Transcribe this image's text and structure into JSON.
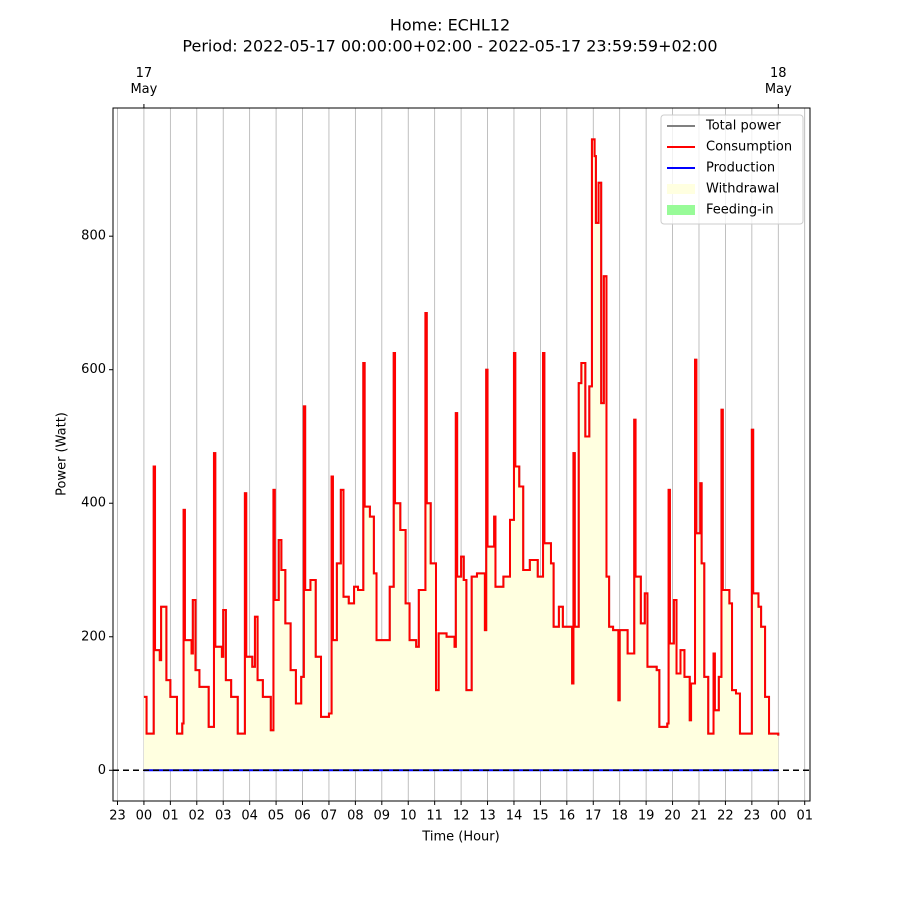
{
  "chart_data": {
    "type": "step",
    "title": "Home: ECHL12",
    "subtitle": "Period: 2022-05-17 00:00:00+02:00 - 2022-05-17 23:59:59+02:00",
    "x_label": "Time (Hour)",
    "y_label": "Power (Watt)",
    "xlim": [
      -1.17,
      25.2
    ],
    "ylim": [
      -46,
      992
    ],
    "xticks": [
      {
        "value": -1,
        "label": "23"
      },
      {
        "value": 0,
        "label": "00"
      },
      {
        "value": 1,
        "label": "01"
      },
      {
        "value": 2,
        "label": "02"
      },
      {
        "value": 3,
        "label": "03"
      },
      {
        "value": 4,
        "label": "04"
      },
      {
        "value": 5,
        "label": "05"
      },
      {
        "value": 6,
        "label": "06"
      },
      {
        "value": 7,
        "label": "07"
      },
      {
        "value": 8,
        "label": "08"
      },
      {
        "value": 9,
        "label": "09"
      },
      {
        "value": 10,
        "label": "10"
      },
      {
        "value": 11,
        "label": "11"
      },
      {
        "value": 12,
        "label": "12"
      },
      {
        "value": 13,
        "label": "13"
      },
      {
        "value": 14,
        "label": "14"
      },
      {
        "value": 15,
        "label": "15"
      },
      {
        "value": 16,
        "label": "16"
      },
      {
        "value": 17,
        "label": "17"
      },
      {
        "value": 18,
        "label": "18"
      },
      {
        "value": 19,
        "label": "19"
      },
      {
        "value": 20,
        "label": "20"
      },
      {
        "value": 21,
        "label": "21"
      },
      {
        "value": 22,
        "label": "22"
      },
      {
        "value": 23,
        "label": "23"
      },
      {
        "value": 24,
        "label": "00"
      },
      {
        "value": 25,
        "label": "01"
      }
    ],
    "top_xticks": [
      {
        "value": 0,
        "label": "17\nMay"
      },
      {
        "value": 24,
        "label": "18\nMay"
      }
    ],
    "yticks": [
      0,
      200,
      400,
      600,
      800
    ],
    "grid": "x",
    "legend": "upper right",
    "hline": 0,
    "x": [
      0,
      0.1,
      0.35,
      0.37,
      0.42,
      0.6,
      0.65,
      0.85,
      1.0,
      1.25,
      1.45,
      1.5,
      1.55,
      1.8,
      1.85,
      1.95,
      2.1,
      2.45,
      2.6,
      2.65,
      2.7,
      2.95,
      3.0,
      3.1,
      3.3,
      3.55,
      3.8,
      3.82,
      3.87,
      4.1,
      4.2,
      4.3,
      4.5,
      4.8,
      4.9,
      4.95,
      5.1,
      5.2,
      5.35,
      5.55,
      5.75,
      5.95,
      6.05,
      6.1,
      6.3,
      6.5,
      6.7,
      7.0,
      7.1,
      7.15,
      7.3,
      7.45,
      7.55,
      7.75,
      7.95,
      8.1,
      8.3,
      8.35,
      8.55,
      8.7,
      8.8,
      9.2,
      9.3,
      9.45,
      9.5,
      9.7,
      9.9,
      10.05,
      10.3,
      10.4,
      10.65,
      10.7,
      10.85,
      11.05,
      11.15,
      11.45,
      11.75,
      11.8,
      11.85,
      12.0,
      12.1,
      12.2,
      12.4,
      12.6,
      12.9,
      12.95,
      13.0,
      13.25,
      13.3,
      13.6,
      13.85,
      14.0,
      14.05,
      14.2,
      14.35,
      14.6,
      14.9,
      15.1,
      15.15,
      15.4,
      15.5,
      15.7,
      15.85,
      16.2,
      16.25,
      16.3,
      16.45,
      16.55,
      16.7,
      16.85,
      16.95,
      17.05,
      17.1,
      17.2,
      17.3,
      17.4,
      17.5,
      17.6,
      17.75,
      17.95,
      18.0,
      18.3,
      18.55,
      18.6,
      18.8,
      18.95,
      19.05,
      19.4,
      19.5,
      19.8,
      19.85,
      19.9,
      20.05,
      20.15,
      20.3,
      20.45,
      20.65,
      20.7,
      20.85,
      20.9,
      21.05,
      21.1,
      21.2,
      21.35,
      21.55,
      21.6,
      21.75,
      21.85,
      21.9,
      22.15,
      22.25,
      22.4,
      22.55,
      22.95,
      23.0,
      23.05,
      23.25,
      23.35,
      23.5,
      23.65,
      23.95,
      24.0
    ],
    "series": [
      {
        "name": "Total power",
        "color": "#808080",
        "style": "line",
        "values": [
          110,
          55,
          55,
          455,
          180,
          165,
          245,
          135,
          110,
          55,
          70,
          390,
          195,
          175,
          255,
          150,
          125,
          65,
          65,
          475,
          185,
          170,
          240,
          135,
          110,
          55,
          55,
          415,
          170,
          155,
          230,
          135,
          110,
          60,
          420,
          255,
          345,
          300,
          220,
          150,
          100,
          140,
          545,
          270,
          285,
          170,
          80,
          85,
          440,
          195,
          310,
          420,
          260,
          250,
          275,
          270,
          610,
          395,
          380,
          295,
          195,
          195,
          275,
          625,
          400,
          360,
          250,
          195,
          185,
          270,
          685,
          400,
          310,
          120,
          205,
          200,
          185,
          535,
          290,
          320,
          285,
          120,
          290,
          295,
          210,
          600,
          335,
          380,
          275,
          290,
          375,
          625,
          455,
          425,
          300,
          315,
          290,
          625,
          340,
          310,
          215,
          245,
          215,
          130,
          475,
          215,
          580,
          610,
          500,
          575,
          945,
          920,
          820,
          880,
          550,
          740,
          290,
          215,
          210,
          105,
          210,
          175,
          525,
          290,
          220,
          265,
          155,
          150,
          65,
          70,
          420,
          190,
          255,
          145,
          180,
          140,
          75,
          130,
          615,
          355,
          430,
          310,
          140,
          55,
          175,
          90,
          140,
          540,
          270,
          250,
          120,
          115,
          55,
          55,
          510,
          265,
          245,
          215,
          110,
          55,
          55,
          52
        ]
      },
      {
        "name": "Consumption",
        "color": "#ff0000",
        "style": "line",
        "values": [
          110,
          55,
          55,
          455,
          180,
          165,
          245,
          135,
          110,
          55,
          70,
          390,
          195,
          175,
          255,
          150,
          125,
          65,
          65,
          475,
          185,
          170,
          240,
          135,
          110,
          55,
          55,
          415,
          170,
          155,
          230,
          135,
          110,
          60,
          420,
          255,
          345,
          300,
          220,
          150,
          100,
          140,
          545,
          270,
          285,
          170,
          80,
          85,
          440,
          195,
          310,
          420,
          260,
          250,
          275,
          270,
          610,
          395,
          380,
          295,
          195,
          195,
          275,
          625,
          400,
          360,
          250,
          195,
          185,
          270,
          685,
          400,
          310,
          120,
          205,
          200,
          185,
          535,
          290,
          320,
          285,
          120,
          290,
          295,
          210,
          600,
          335,
          380,
          275,
          290,
          375,
          625,
          455,
          425,
          300,
          315,
          290,
          625,
          340,
          310,
          215,
          245,
          215,
          130,
          475,
          215,
          580,
          610,
          500,
          575,
          945,
          920,
          820,
          880,
          550,
          740,
          290,
          215,
          210,
          105,
          210,
          175,
          525,
          290,
          220,
          265,
          155,
          150,
          65,
          70,
          420,
          190,
          255,
          145,
          180,
          140,
          75,
          130,
          615,
          355,
          430,
          310,
          140,
          55,
          175,
          90,
          140,
          540,
          270,
          250,
          120,
          115,
          55,
          55,
          510,
          265,
          245,
          215,
          110,
          55,
          55,
          52
        ]
      },
      {
        "name": "Production",
        "color": "#0000ff",
        "style": "line",
        "x": [
          0,
          24
        ],
        "values": [
          0,
          0
        ]
      },
      {
        "name": "Withdrawal",
        "color": "#ffffe0",
        "style": "fill",
        "values": [
          110,
          55,
          55,
          455,
          180,
          165,
          245,
          135,
          110,
          55,
          70,
          390,
          195,
          175,
          255,
          150,
          125,
          65,
          65,
          475,
          185,
          170,
          240,
          135,
          110,
          55,
          55,
          415,
          170,
          155,
          230,
          135,
          110,
          60,
          420,
          255,
          345,
          300,
          220,
          150,
          100,
          140,
          545,
          270,
          285,
          170,
          80,
          85,
          440,
          195,
          310,
          420,
          260,
          250,
          275,
          270,
          610,
          395,
          380,
          295,
          195,
          195,
          275,
          625,
          400,
          360,
          250,
          195,
          185,
          270,
          685,
          400,
          310,
          120,
          205,
          200,
          185,
          535,
          290,
          320,
          285,
          120,
          290,
          295,
          210,
          600,
          335,
          380,
          275,
          290,
          375,
          625,
          455,
          425,
          300,
          315,
          290,
          625,
          340,
          310,
          215,
          245,
          215,
          130,
          475,
          215,
          580,
          610,
          500,
          575,
          945,
          920,
          820,
          880,
          550,
          740,
          290,
          215,
          210,
          105,
          210,
          175,
          525,
          290,
          220,
          265,
          155,
          150,
          65,
          70,
          420,
          190,
          255,
          145,
          180,
          140,
          75,
          130,
          615,
          355,
          430,
          310,
          140,
          55,
          175,
          90,
          140,
          540,
          270,
          250,
          120,
          115,
          55,
          55,
          510,
          265,
          245,
          215,
          110,
          55,
          55,
          52
        ]
      },
      {
        "name": "Feeding-in",
        "color": "#98fb98",
        "style": "fill",
        "x": [
          0,
          24
        ],
        "values": [
          0,
          0
        ]
      }
    ]
  }
}
